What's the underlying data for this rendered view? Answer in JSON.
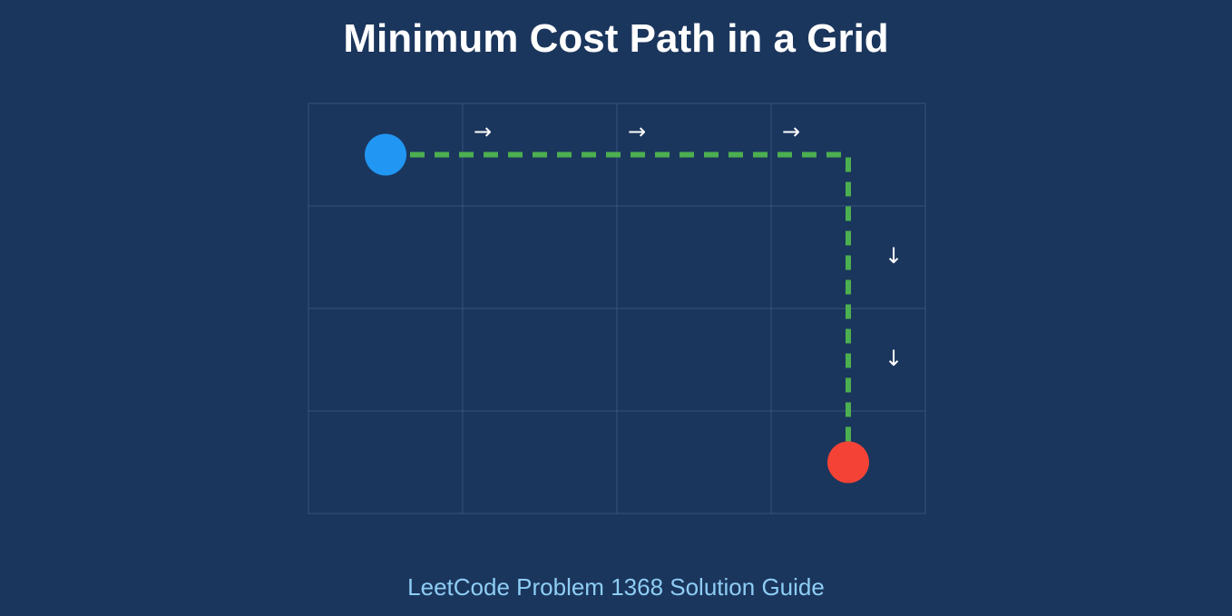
{
  "title": "Minimum Cost Path in a Grid",
  "subtitle": "LeetCode Problem 1368 Solution Guide",
  "colors": {
    "background": "#1b365d",
    "grid_line": "#36537b",
    "path": "#4caf50",
    "start": "#2196f3",
    "end": "#f44336",
    "arrow": "#ffffff",
    "subtitle": "#8ecdf4"
  },
  "grid": {
    "rows": 4,
    "cols": 4
  },
  "start": {
    "row": 0,
    "col": 0
  },
  "end": {
    "row": 3,
    "col": 3
  },
  "path": [
    {
      "row": 0,
      "col": 0
    },
    {
      "row": 0,
      "col": 3
    },
    {
      "row": 3,
      "col": 3
    }
  ],
  "arrows": [
    {
      "symbol": "→",
      "row": 0,
      "col": 1,
      "direction": "right"
    },
    {
      "symbol": "→",
      "row": 0,
      "col": 2,
      "direction": "right"
    },
    {
      "symbol": "→",
      "row": 0,
      "col": 3,
      "direction": "right"
    },
    {
      "symbol": "↓",
      "row": 1,
      "col": 3,
      "direction": "down"
    },
    {
      "symbol": "↓",
      "row": 2,
      "col": 3,
      "direction": "down"
    }
  ]
}
